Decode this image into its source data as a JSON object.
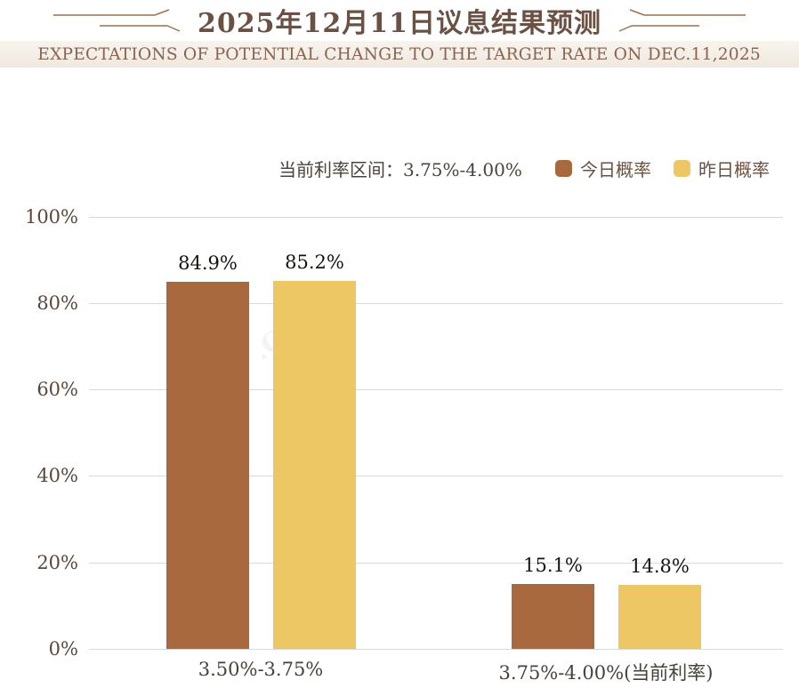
{
  "header": {
    "title": "2025年12月11日议息结果预测",
    "subtitle": "EXPECTATIONS OF POTENTIAL CHANGE TO THE TARGET RATE ON DEC.11,2025"
  },
  "legend": {
    "current_rate_label": "当前利率区间：3.75%-4.00%",
    "items": [
      {
        "label": "今日概率",
        "color": "#a8693e"
      },
      {
        "label": "昨日概率",
        "color": "#edc764"
      }
    ]
  },
  "chart_data": {
    "type": "bar",
    "title": "2025年12月11日议息结果预测",
    "subtitle": "EXPECTATIONS OF POTENTIAL CHANGE TO THE TARGET RATE ON DEC.11,2025",
    "categories": [
      "3.50%-3.75%",
      "3.75%-4.00%(当前利率)"
    ],
    "series": [
      {
        "name": "今日概率",
        "color": "#a8693e",
        "values": [
          84.9,
          15.1
        ],
        "labels": [
          "84.9%",
          "15.1%"
        ]
      },
      {
        "name": "昨日概率",
        "color": "#edc764",
        "values": [
          85.2,
          14.8
        ],
        "labels": [
          "85.2%",
          "14.8%"
        ]
      }
    ],
    "xlabel": "",
    "ylabel": "",
    "ylim": [
      0,
      100
    ],
    "yticks": [
      "100%",
      "80%",
      "60%",
      "40%",
      "20%",
      "0%"
    ],
    "grid": true,
    "legend_position": "top-right",
    "annotation": "当前利率区间：3.75%-4.00%"
  },
  "watermark": {
    "text": ".COM"
  },
  "colors": {
    "title": "#6a5144",
    "subtitle": "#8a6351",
    "today_bar": "#a8693e",
    "yesterday_bar": "#edc764",
    "gridline": "#d9d9d9",
    "ornament": "#96744c"
  }
}
